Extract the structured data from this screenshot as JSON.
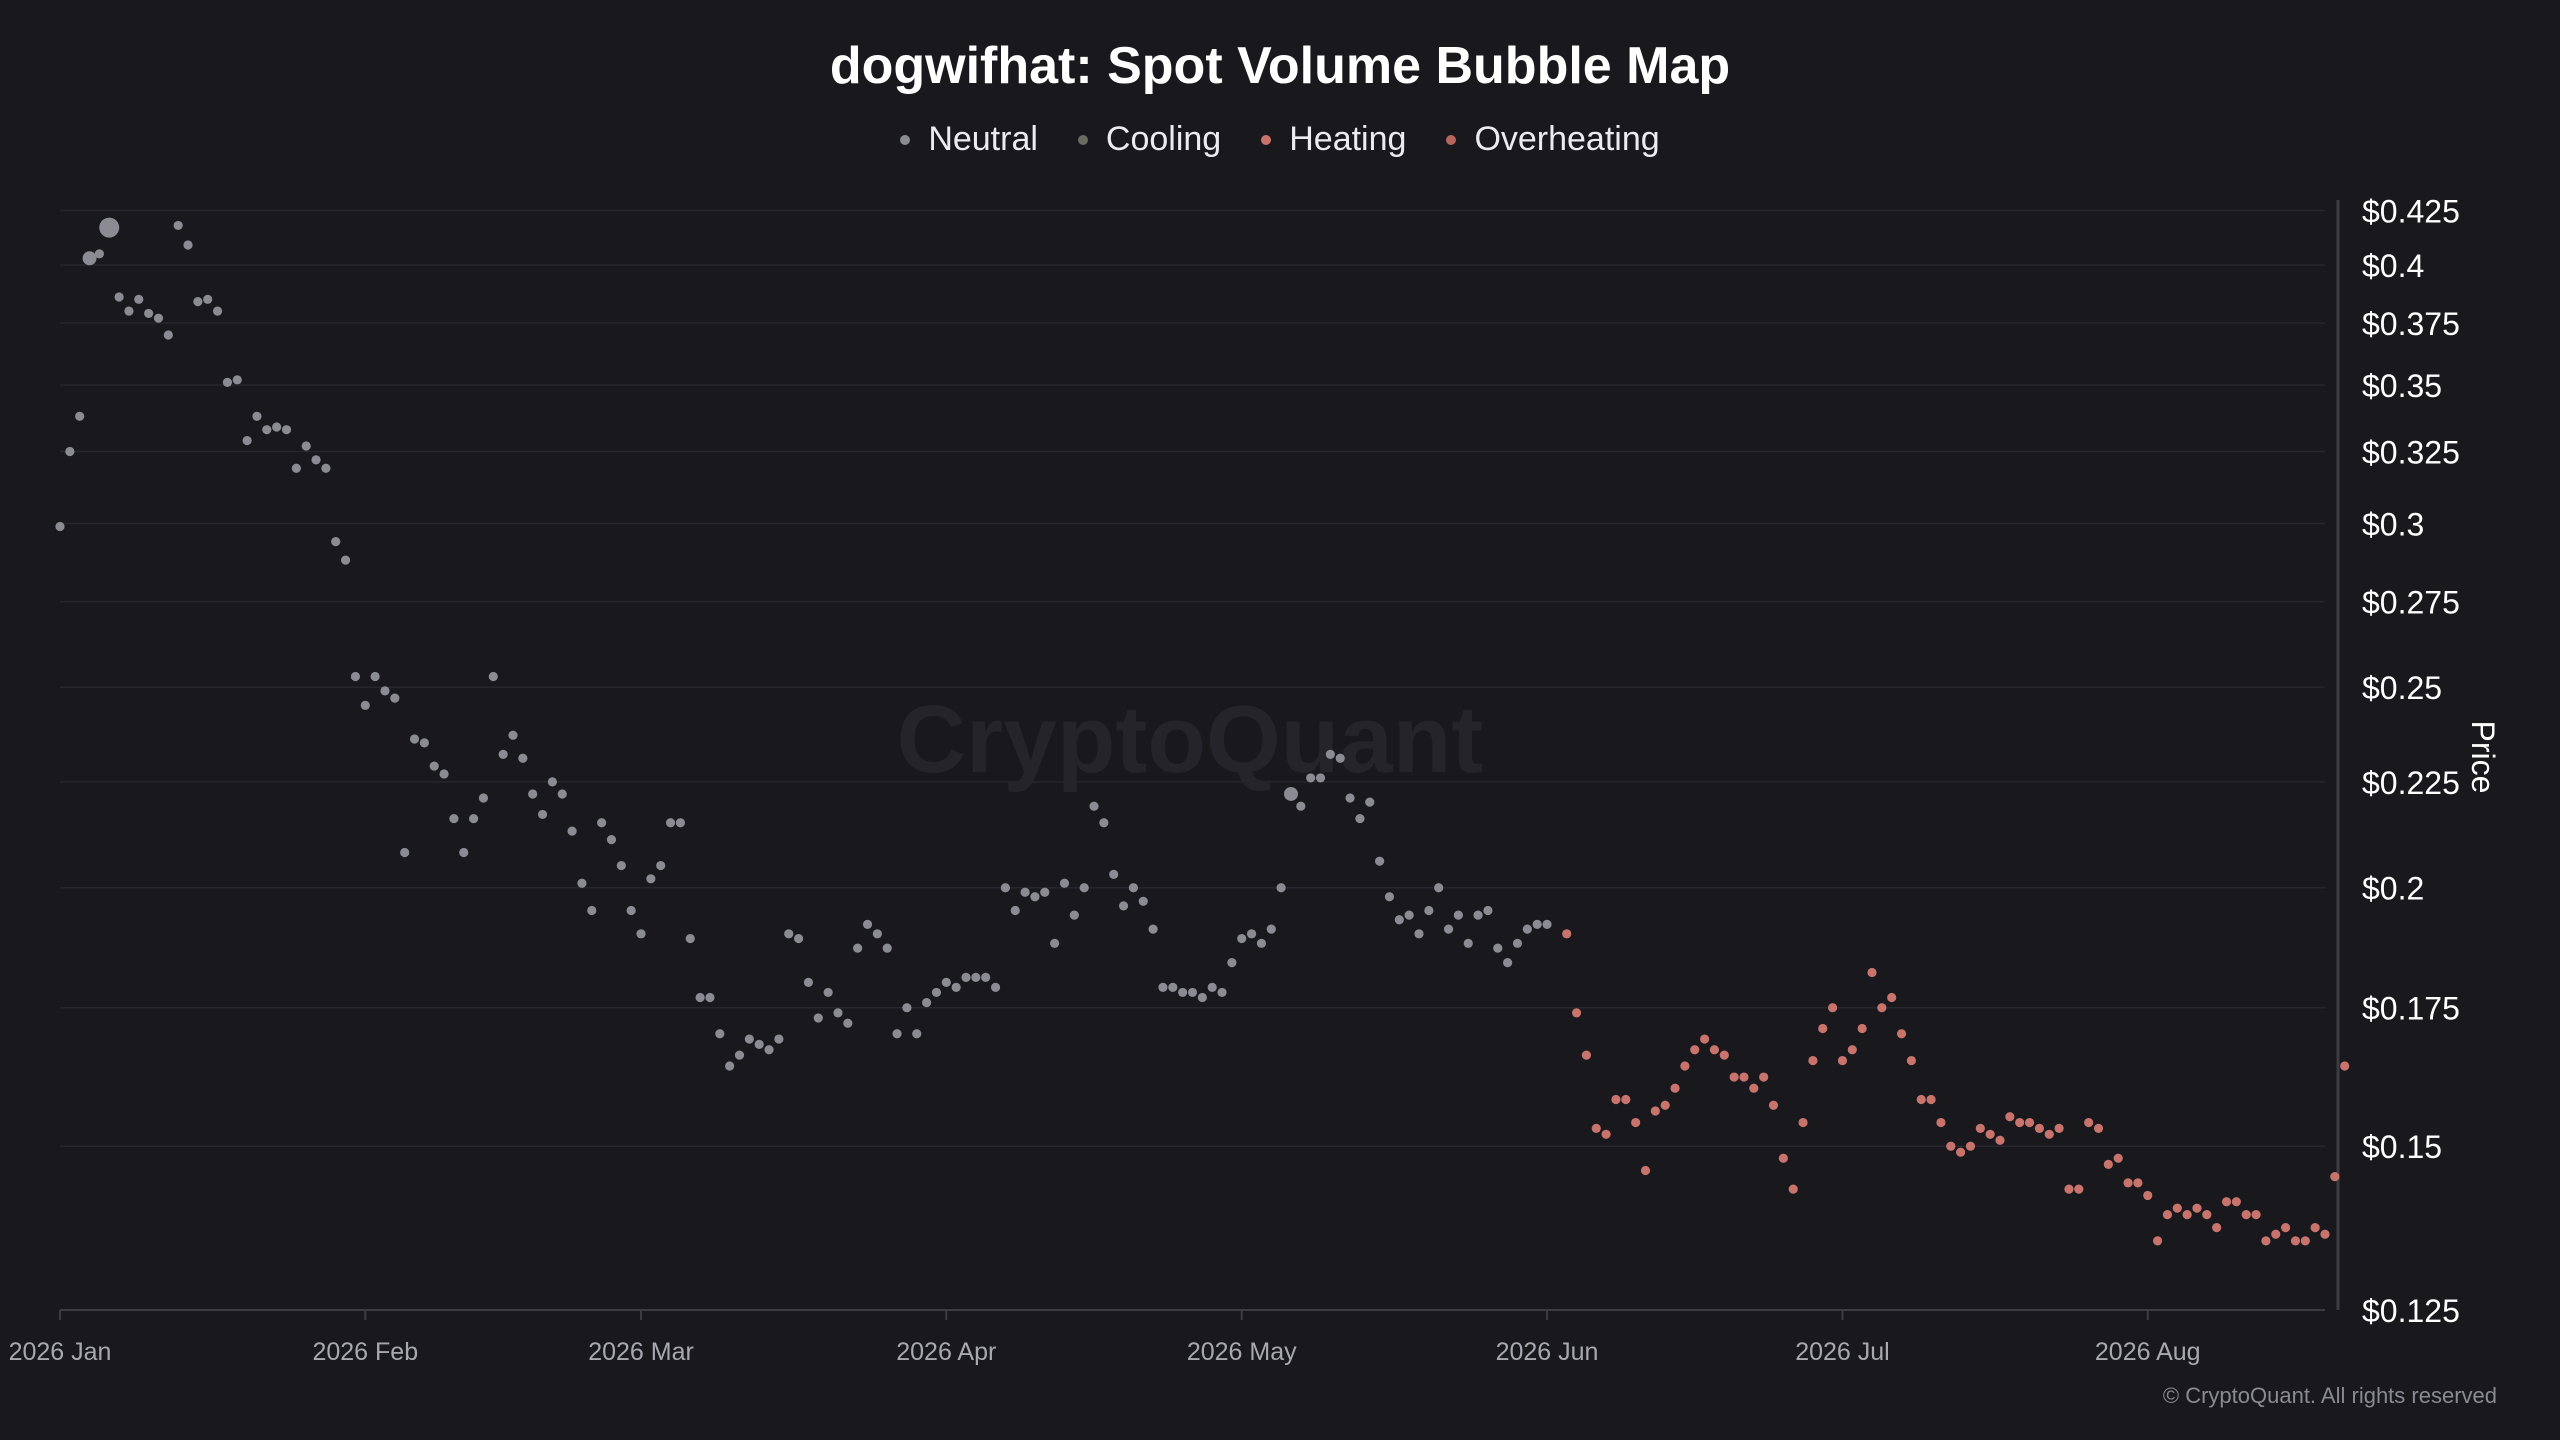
{
  "chart_data": {
    "type": "scatter",
    "title": "dogwifhat: Spot Volume Bubble Map",
    "ylabel": "Price",
    "xlabel": "",
    "watermark": "CryptoQuant",
    "copyright": "© CryptoQuant. All rights reserved",
    "y_scale": "log",
    "ylim": [
      0.125,
      0.43
    ],
    "xlim": [
      "2026-01-01",
      "2026-08-19"
    ],
    "grid": true,
    "legend_position": "top-center",
    "y_ticks": [
      {
        "value": 0.425,
        "label": "$0.425"
      },
      {
        "value": 0.4,
        "label": "$0.4"
      },
      {
        "value": 0.375,
        "label": "$0.375"
      },
      {
        "value": 0.35,
        "label": "$0.35"
      },
      {
        "value": 0.325,
        "label": "$0.325"
      },
      {
        "value": 0.3,
        "label": "$0.3"
      },
      {
        "value": 0.275,
        "label": "$0.275"
      },
      {
        "value": 0.25,
        "label": "$0.25"
      },
      {
        "value": 0.225,
        "label": "$0.225"
      },
      {
        "value": 0.2,
        "label": "$0.2"
      },
      {
        "value": 0.175,
        "label": "$0.175"
      },
      {
        "value": 0.15,
        "label": "$0.15"
      },
      {
        "value": 0.125,
        "label": "$0.125"
      }
    ],
    "x_ticks": [
      {
        "date": "2026-01-01",
        "label": "2026 Jan"
      },
      {
        "date": "2026-02-01",
        "label": "2026 Feb"
      },
      {
        "date": "2026-03-01",
        "label": "2026 Mar"
      },
      {
        "date": "2026-04-01",
        "label": "2026 Apr"
      },
      {
        "date": "2026-05-01",
        "label": "2026 May"
      },
      {
        "date": "2026-06-01",
        "label": "2026 Jun"
      },
      {
        "date": "2026-07-01",
        "label": "2026 Jul"
      },
      {
        "date": "2026-08-01",
        "label": "2026 Aug"
      }
    ],
    "legend": [
      {
        "name": "Neutral",
        "color": "#8b8b93"
      },
      {
        "name": "Cooling",
        "color": "#6b6b62"
      },
      {
        "name": "Heating",
        "color": "#c8746c"
      },
      {
        "name": "Overheating",
        "color": "#b8655f"
      }
    ],
    "series": [
      {
        "name": "Neutral",
        "color": "#8b8b93",
        "points": [
          [
            "2026-01-01",
            0.299
          ],
          [
            "2026-01-02",
            0.325
          ],
          [
            "2026-01-03",
            0.338
          ],
          [
            "2026-01-04",
            0.403
          ],
          [
            "2026-01-05",
            0.405
          ],
          [
            "2026-01-06",
            0.417
          ],
          [
            "2026-01-07",
            0.386
          ],
          [
            "2026-01-08",
            0.38
          ],
          [
            "2026-01-09",
            0.385
          ],
          [
            "2026-01-10",
            0.379
          ],
          [
            "2026-01-11",
            0.377
          ],
          [
            "2026-01-12",
            0.37
          ],
          [
            "2026-01-13",
            0.418
          ],
          [
            "2026-01-14",
            0.409
          ],
          [
            "2026-01-15",
            0.384
          ],
          [
            "2026-01-16",
            0.385
          ],
          [
            "2026-01-17",
            0.38
          ],
          [
            "2026-01-18",
            0.351
          ],
          [
            "2026-01-19",
            0.352
          ],
          [
            "2026-01-20",
            0.329
          ],
          [
            "2026-01-21",
            0.338
          ],
          [
            "2026-01-22",
            0.333
          ],
          [
            "2026-01-23",
            0.334
          ],
          [
            "2026-01-24",
            0.333
          ],
          [
            "2026-01-25",
            0.319
          ],
          [
            "2026-01-26",
            0.327
          ],
          [
            "2026-01-27",
            0.322
          ],
          [
            "2026-01-28",
            0.319
          ],
          [
            "2026-01-29",
            0.294
          ],
          [
            "2026-01-30",
            0.288
          ],
          [
            "2026-01-31",
            0.253
          ],
          [
            "2026-02-01",
            0.245
          ],
          [
            "2026-02-02",
            0.253
          ],
          [
            "2026-02-03",
            0.249
          ],
          [
            "2026-02-04",
            0.247
          ],
          [
            "2026-02-05",
            0.208
          ],
          [
            "2026-02-06",
            0.236
          ],
          [
            "2026-02-07",
            0.235
          ],
          [
            "2026-02-08",
            0.229
          ],
          [
            "2026-02-09",
            0.227
          ],
          [
            "2026-02-10",
            0.216
          ],
          [
            "2026-02-11",
            0.208
          ],
          [
            "2026-02-12",
            0.216
          ],
          [
            "2026-02-13",
            0.221
          ],
          [
            "2026-02-14",
            0.253
          ],
          [
            "2026-02-15",
            0.232
          ],
          [
            "2026-02-16",
            0.237
          ],
          [
            "2026-02-17",
            0.231
          ],
          [
            "2026-02-18",
            0.222
          ],
          [
            "2026-02-19",
            0.217
          ],
          [
            "2026-02-20",
            0.225
          ],
          [
            "2026-02-21",
            0.222
          ],
          [
            "2026-02-22",
            0.213
          ],
          [
            "2026-02-23",
            0.201
          ],
          [
            "2026-02-24",
            0.195
          ],
          [
            "2026-02-25",
            0.215
          ],
          [
            "2026-02-26",
            0.211
          ],
          [
            "2026-02-27",
            0.205
          ],
          [
            "2026-02-28",
            0.195
          ],
          [
            "2026-03-01",
            0.19
          ],
          [
            "2026-03-02",
            0.202
          ],
          [
            "2026-03-03",
            0.205
          ],
          [
            "2026-03-04",
            0.215
          ],
          [
            "2026-03-05",
            0.215
          ],
          [
            "2026-03-06",
            0.189
          ],
          [
            "2026-03-07",
            0.177
          ],
          [
            "2026-03-08",
            0.177
          ],
          [
            "2026-03-09",
            0.17
          ],
          [
            "2026-03-10",
            0.164
          ],
          [
            "2026-03-11",
            0.166
          ],
          [
            "2026-03-12",
            0.169
          ],
          [
            "2026-03-13",
            0.168
          ],
          [
            "2026-03-14",
            0.167
          ],
          [
            "2026-03-15",
            0.169
          ],
          [
            "2026-03-16",
            0.19
          ],
          [
            "2026-03-17",
            0.189
          ],
          [
            "2026-03-18",
            0.18
          ],
          [
            "2026-03-19",
            0.173
          ],
          [
            "2026-03-20",
            0.178
          ],
          [
            "2026-03-21",
            0.174
          ],
          [
            "2026-03-22",
            0.172
          ],
          [
            "2026-03-23",
            0.187
          ],
          [
            "2026-03-24",
            0.192
          ],
          [
            "2026-03-25",
            0.19
          ],
          [
            "2026-03-26",
            0.187
          ],
          [
            "2026-03-27",
            0.17
          ],
          [
            "2026-03-28",
            0.175
          ],
          [
            "2026-03-29",
            0.17
          ],
          [
            "2026-03-30",
            0.176
          ],
          [
            "2026-03-31",
            0.178
          ],
          [
            "2026-04-01",
            0.18
          ],
          [
            "2026-04-02",
            0.179
          ],
          [
            "2026-04-03",
            0.181
          ],
          [
            "2026-04-04",
            0.181
          ],
          [
            "2026-04-05",
            0.181
          ],
          [
            "2026-04-06",
            0.179
          ],
          [
            "2026-04-07",
            0.2
          ],
          [
            "2026-04-08",
            0.195
          ],
          [
            "2026-04-09",
            0.199
          ],
          [
            "2026-04-10",
            0.198
          ],
          [
            "2026-04-11",
            0.199
          ],
          [
            "2026-04-12",
            0.188
          ],
          [
            "2026-04-13",
            0.201
          ],
          [
            "2026-04-14",
            0.194
          ],
          [
            "2026-04-15",
            0.2
          ],
          [
            "2026-04-16",
            0.219
          ],
          [
            "2026-04-17",
            0.215
          ],
          [
            "2026-04-18",
            0.203
          ],
          [
            "2026-04-19",
            0.196
          ],
          [
            "2026-04-20",
            0.2
          ],
          [
            "2026-04-21",
            0.197
          ],
          [
            "2026-04-22",
            0.191
          ],
          [
            "2026-04-23",
            0.179
          ],
          [
            "2026-04-24",
            0.179
          ],
          [
            "2026-04-25",
            0.178
          ],
          [
            "2026-04-26",
            0.178
          ],
          [
            "2026-04-27",
            0.177
          ],
          [
            "2026-04-28",
            0.179
          ],
          [
            "2026-04-29",
            0.178
          ],
          [
            "2026-04-30",
            0.184
          ],
          [
            "2026-05-01",
            0.189
          ],
          [
            "2026-05-02",
            0.19
          ],
          [
            "2026-05-03",
            0.188
          ],
          [
            "2026-05-04",
            0.191
          ],
          [
            "2026-05-05",
            0.2
          ],
          [
            "2026-05-06",
            0.222
          ],
          [
            "2026-05-07",
            0.219
          ],
          [
            "2026-05-08",
            0.226
          ],
          [
            "2026-05-09",
            0.226
          ],
          [
            "2026-05-10",
            0.232
          ],
          [
            "2026-05-11",
            0.231
          ],
          [
            "2026-05-12",
            0.221
          ],
          [
            "2026-05-13",
            0.216
          ],
          [
            "2026-05-14",
            0.22
          ],
          [
            "2026-05-15",
            0.206
          ],
          [
            "2026-05-16",
            0.198
          ],
          [
            "2026-05-17",
            0.193
          ],
          [
            "2026-05-18",
            0.194
          ],
          [
            "2026-05-19",
            0.19
          ],
          [
            "2026-05-20",
            0.195
          ],
          [
            "2026-05-21",
            0.2
          ],
          [
            "2026-05-22",
            0.191
          ],
          [
            "2026-05-23",
            0.194
          ],
          [
            "2026-05-24",
            0.188
          ],
          [
            "2026-05-25",
            0.194
          ],
          [
            "2026-05-26",
            0.195
          ],
          [
            "2026-05-27",
            0.187
          ],
          [
            "2026-05-28",
            0.184
          ],
          [
            "2026-05-29",
            0.188
          ],
          [
            "2026-05-30",
            0.191
          ],
          [
            "2026-05-31",
            0.192
          ],
          [
            "2026-06-01",
            0.192
          ]
        ]
      },
      {
        "name": "Heating",
        "color": "#c8746c",
        "points": [
          [
            "2026-06-03",
            0.19
          ],
          [
            "2026-06-04",
            0.174
          ],
          [
            "2026-06-05",
            0.166
          ],
          [
            "2026-06-06",
            0.153
          ],
          [
            "2026-06-07",
            0.152
          ],
          [
            "2026-06-08",
            0.158
          ],
          [
            "2026-06-09",
            0.158
          ],
          [
            "2026-06-10",
            0.154
          ],
          [
            "2026-06-11",
            0.146
          ],
          [
            "2026-06-12",
            0.156
          ],
          [
            "2026-06-13",
            0.157
          ],
          [
            "2026-06-14",
            0.16
          ],
          [
            "2026-06-15",
            0.164
          ],
          [
            "2026-06-16",
            0.167
          ],
          [
            "2026-06-17",
            0.169
          ],
          [
            "2026-06-18",
            0.167
          ],
          [
            "2026-06-19",
            0.166
          ],
          [
            "2026-06-20",
            0.162
          ],
          [
            "2026-06-21",
            0.162
          ],
          [
            "2026-06-22",
            0.16
          ],
          [
            "2026-06-23",
            0.162
          ],
          [
            "2026-06-24",
            0.157
          ],
          [
            "2026-06-25",
            0.148
          ],
          [
            "2026-06-26",
            0.143
          ],
          [
            "2026-06-27",
            0.154
          ],
          [
            "2026-06-28",
            0.165
          ],
          [
            "2026-06-29",
            0.171
          ],
          [
            "2026-06-30",
            0.175
          ],
          [
            "2026-07-01",
            0.165
          ],
          [
            "2026-07-02",
            0.167
          ],
          [
            "2026-07-03",
            0.171
          ],
          [
            "2026-07-04",
            0.182
          ],
          [
            "2026-07-05",
            0.175
          ],
          [
            "2026-07-06",
            0.177
          ],
          [
            "2026-07-07",
            0.17
          ],
          [
            "2026-07-08",
            0.165
          ],
          [
            "2026-07-09",
            0.158
          ],
          [
            "2026-07-10",
            0.158
          ],
          [
            "2026-07-11",
            0.154
          ],
          [
            "2026-07-12",
            0.15
          ],
          [
            "2026-07-13",
            0.149
          ],
          [
            "2026-07-14",
            0.15
          ],
          [
            "2026-07-15",
            0.153
          ],
          [
            "2026-07-16",
            0.152
          ],
          [
            "2026-07-17",
            0.151
          ],
          [
            "2026-07-18",
            0.155
          ],
          [
            "2026-07-19",
            0.154
          ],
          [
            "2026-07-20",
            0.154
          ],
          [
            "2026-07-21",
            0.153
          ],
          [
            "2026-07-22",
            0.152
          ],
          [
            "2026-07-23",
            0.153
          ],
          [
            "2026-07-24",
            0.143
          ],
          [
            "2026-07-25",
            0.143
          ],
          [
            "2026-07-26",
            0.154
          ],
          [
            "2026-07-27",
            0.153
          ],
          [
            "2026-07-28",
            0.147
          ],
          [
            "2026-07-29",
            0.148
          ],
          [
            "2026-07-30",
            0.144
          ],
          [
            "2026-07-31",
            0.144
          ],
          [
            "2026-08-01",
            0.142
          ],
          [
            "2026-08-02",
            0.135
          ],
          [
            "2026-08-03",
            0.139
          ],
          [
            "2026-08-04",
            0.14
          ],
          [
            "2026-08-05",
            0.139
          ],
          [
            "2026-08-06",
            0.14
          ],
          [
            "2026-08-07",
            0.139
          ],
          [
            "2026-08-08",
            0.137
          ],
          [
            "2026-08-09",
            0.141
          ],
          [
            "2026-08-10",
            0.141
          ],
          [
            "2026-08-11",
            0.139
          ],
          [
            "2026-08-12",
            0.139
          ],
          [
            "2026-08-13",
            0.135
          ],
          [
            "2026-08-14",
            0.136
          ],
          [
            "2026-08-15",
            0.137
          ],
          [
            "2026-08-16",
            0.135
          ],
          [
            "2026-08-17",
            0.135
          ],
          [
            "2026-08-18",
            0.137
          ],
          [
            "2026-08-19",
            0.136
          ],
          [
            "2026-08-20",
            0.145
          ],
          [
            "2026-08-21",
            0.164
          ]
        ]
      }
    ]
  }
}
